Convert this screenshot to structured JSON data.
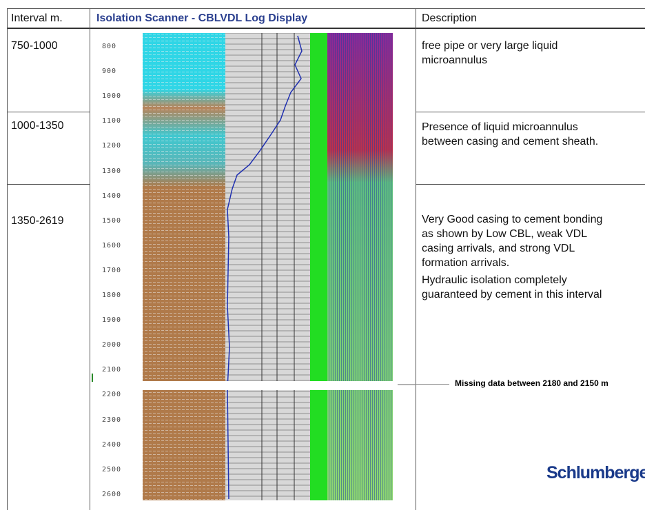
{
  "header": {
    "interval": "Interval m.",
    "log": "Isolation Scanner - CBLVDL Log Display",
    "description": "Description"
  },
  "rows": [
    {
      "interval": "750-1000",
      "description": [
        [
          "free pipe or very large liquid",
          "microannulus"
        ]
      ]
    },
    {
      "interval": "1000-1350",
      "description": [
        [
          "Presence of liquid microannulus",
          "between casing and cement sheath."
        ]
      ]
    },
    {
      "interval": "1350-2619",
      "description": [
        [
          "Very Good casing to cement bonding",
          "as shown by Low CBL, weak VDL",
          "casing arrivals, and strong VDL",
          "formation arrivals."
        ],
        [
          "Hydraulic isolation completely",
          "guaranteed by cement in this interval"
        ]
      ]
    }
  ],
  "depths": [
    "800",
    "900",
    "1000",
    "1100",
    "1200",
    "1300",
    "1400",
    "1500",
    "1600",
    "1700",
    "1800",
    "1900",
    "2000",
    "2100",
    "2200",
    "2300",
    "2400",
    "2500",
    "2600"
  ],
  "annotation": "Missing data between 2180 and 2150 m",
  "logo": "Schlumberger"
}
